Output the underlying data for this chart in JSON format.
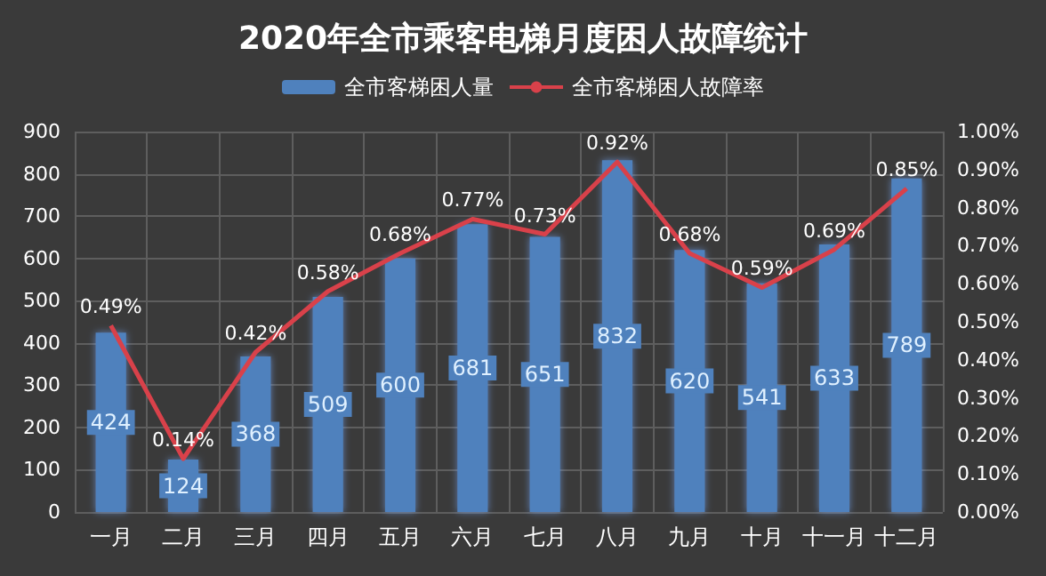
{
  "chart_data": {
    "type": "bar",
    "title": "2020年全市乘客电梯月度困人故障统计",
    "categories": [
      "一月",
      "二月",
      "三月",
      "四月",
      "五月",
      "六月",
      "七月",
      "八月",
      "九月",
      "十月",
      "十一月",
      "十二月"
    ],
    "series": [
      {
        "name": "全市客梯困人量",
        "color": "#4f81bd",
        "values": [
          424,
          124,
          368,
          509,
          600,
          681,
          651,
          832,
          620,
          541,
          633,
          789
        ],
        "value_labels": [
          "424",
          "124",
          "368",
          "509",
          "600",
          "681",
          "651",
          "832",
          "620",
          "541",
          "633",
          "789"
        ]
      },
      {
        "name": "全市客梯困人故障率",
        "type": "line",
        "axis": "y2",
        "color": "#d9414a",
        "values": [
          0.49,
          0.14,
          0.42,
          0.58,
          0.68,
          0.77,
          0.73,
          0.92,
          0.68,
          0.59,
          0.69,
          0.85
        ],
        "value_labels": [
          "0.49%",
          "0.14%",
          "0.42%",
          "0.58%",
          "0.68%",
          "0.77%",
          "0.73%",
          "0.92%",
          "0.68%",
          "0.59%",
          "0.69%",
          "0.85%"
        ]
      }
    ],
    "ylim": [
      0,
      900
    ],
    "yticks": [
      0,
      100,
      200,
      300,
      400,
      500,
      600,
      700,
      800,
      900
    ],
    "y2lim": [
      0,
      1
    ],
    "y2ticks": [
      {
        "value": 0,
        "label": "0.00%"
      },
      {
        "value": 0.1,
        "label": "0.10%"
      },
      {
        "value": 0.2,
        "label": "0.20%"
      },
      {
        "value": 0.3,
        "label": "0.30%"
      },
      {
        "value": 0.4,
        "label": "0.40%"
      },
      {
        "value": 0.5,
        "label": "0.50%"
      },
      {
        "value": 0.6,
        "label": "0.60%"
      },
      {
        "value": 0.7,
        "label": "0.70%"
      },
      {
        "value": 0.8,
        "label": "0.80%"
      },
      {
        "value": 0.9,
        "label": "0.90%"
      },
      {
        "value": 1,
        "label": "1.00%"
      }
    ],
    "grid": true,
    "legend": "top",
    "marker": "none"
  }
}
